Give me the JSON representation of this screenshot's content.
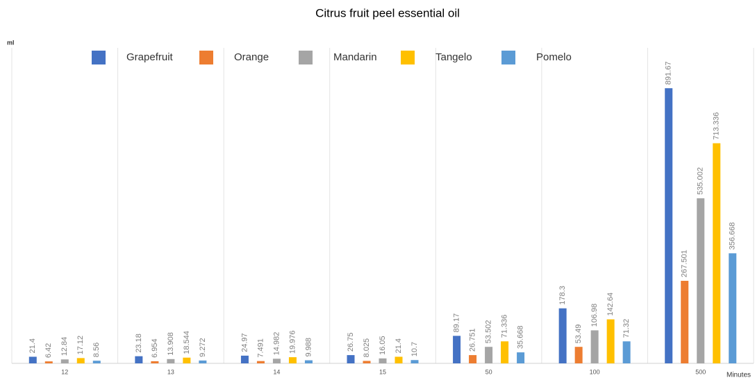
{
  "chart_data": {
    "type": "bar",
    "title": "Citrus fruit peel essential oil",
    "y_label": "ml",
    "x_label": "Minutes",
    "categories": [
      "12",
      "13",
      "14",
      "15",
      "50",
      "100",
      "500"
    ],
    "ylim": [
      0,
      1000
    ],
    "series": [
      {
        "name": "Grapefruit",
        "color": "#4472c4",
        "values": [
          21.4,
          23.18,
          24.97,
          26.75,
          89.17,
          178.3,
          891.67
        ]
      },
      {
        "name": "Orange",
        "color": "#ed7d31",
        "values": [
          6.42,
          6.954,
          7.491,
          8.025,
          26.751,
          53.49,
          267.501
        ]
      },
      {
        "name": "Mandarin",
        "color": "#a5a5a5",
        "values": [
          12.84,
          13.908,
          14.982,
          16.05,
          53.502,
          106.98,
          535.002
        ]
      },
      {
        "name": "Tangelo",
        "color": "#ffc000",
        "values": [
          17.12,
          18.544,
          19.976,
          21.4,
          71.336,
          142.64,
          713.336
        ]
      },
      {
        "name": "Pomelo",
        "color": "#5b9bd5",
        "values": [
          8.56,
          9.272,
          9.988,
          10.7,
          35.668,
          71.32,
          356.668
        ]
      }
    ]
  }
}
